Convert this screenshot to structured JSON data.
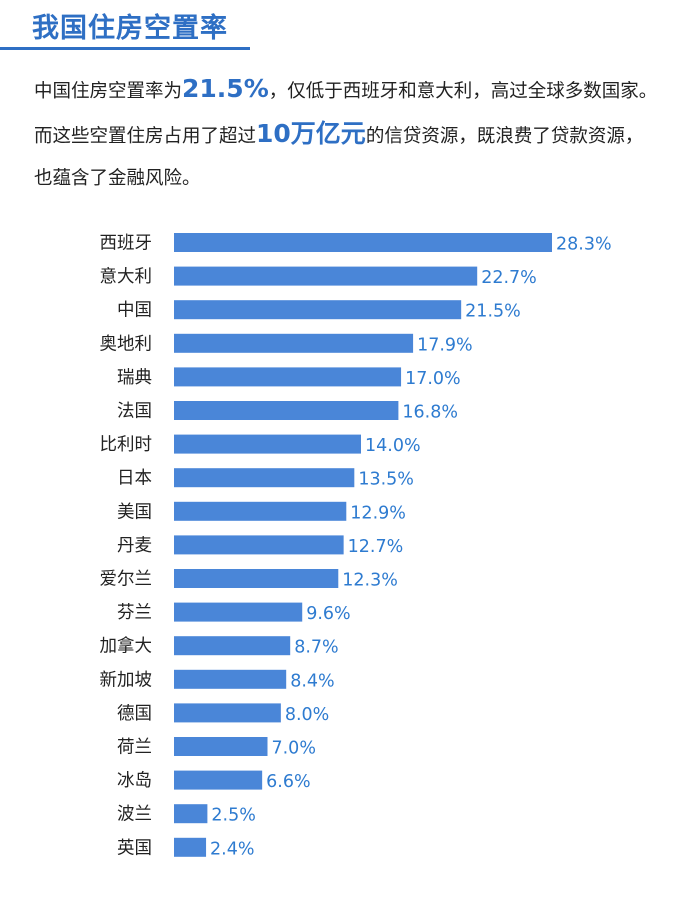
{
  "header": {
    "title": "我国住房空置率"
  },
  "description": {
    "part1": "中国住房空置率为",
    "highlight1": "21.5%",
    "part2": "，仅低于西班牙和意大利，高过全球多数国家。而这些空置住房占用了超过",
    "highlight2": "10万亿元",
    "part3": "的信贷资源，既浪费了贷款资源，也蕴含了金融风险。"
  },
  "colors": {
    "bar": "#4a86d8",
    "title": "#2e6fc4",
    "value_label": "#2e7bd0"
  },
  "chart_data": {
    "type": "bar",
    "orientation": "horizontal",
    "categories": [
      "西班牙",
      "意大利",
      "中国",
      "奥地利",
      "瑞典",
      "法国",
      "比利时",
      "日本",
      "美国",
      "丹麦",
      "爱尔兰",
      "芬兰",
      "加拿大",
      "新加坡",
      "德国",
      "荷兰",
      "冰岛",
      "波兰",
      "英国"
    ],
    "values": [
      28.3,
      22.7,
      21.5,
      17.9,
      17.0,
      16.8,
      14.0,
      13.5,
      12.9,
      12.7,
      12.3,
      9.6,
      8.7,
      8.4,
      8.0,
      7.0,
      6.6,
      2.5,
      2.4
    ],
    "value_labels": [
      "28.3%",
      "22.7%",
      "21.5%",
      "17.9%",
      "17.0%",
      "16.8%",
      "14.0%",
      "13.5%",
      "12.9%",
      "12.7%",
      "12.3%",
      "9.6%",
      "8.7%",
      "8.4%",
      "8.0%",
      "7.0%",
      "6.6%",
      "2.5%",
      "2.4%"
    ],
    "title": "",
    "xlabel": "",
    "ylabel": "",
    "xlim": [
      0,
      28.3
    ],
    "grid": false,
    "legend": "none"
  }
}
